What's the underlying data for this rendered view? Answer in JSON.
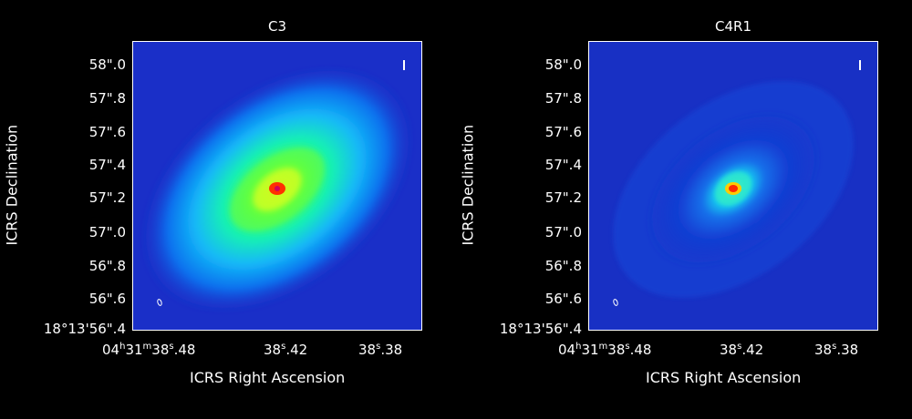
{
  "panels": [
    {
      "title": "C3",
      "xlabel": "ICRS Right Ascension",
      "ylabel": "ICRS Declination",
      "yticks": [
        "58\".0",
        "57\".8",
        "57\".6",
        "57\".4",
        "57\".2",
        "57\".0",
        "56\".8",
        "56\".6",
        "18°13'56\".4"
      ],
      "xticks": [
        {
          "pre": "04",
          "h": "h",
          "mid": "31",
          "m": "m",
          "post": "38",
          "s": "s",
          "end": ".48"
        },
        {
          "pre": "",
          "h": "",
          "mid": "",
          "m": "",
          "post": "38",
          "s": "s",
          "end": ".42"
        },
        {
          "pre": "",
          "h": "",
          "mid": "",
          "m": "",
          "post": "38",
          "s": "s",
          "end": ".38"
        }
      ]
    },
    {
      "title": "C4R1",
      "xlabel": "ICRS Right Ascension",
      "ylabel": "ICRS Declination",
      "yticks": [
        "58\".0",
        "57\".8",
        "57\".6",
        "57\".4",
        "57\".2",
        "57\".0",
        "56\".8",
        "56\".6",
        "18°13'56\".4"
      ],
      "xticks": [
        {
          "pre": "04",
          "h": "h",
          "mid": "31",
          "m": "m",
          "post": "38",
          "s": "s",
          "end": ".48"
        },
        {
          "pre": "",
          "h": "",
          "mid": "",
          "m": "",
          "post": "38",
          "s": "s",
          "end": ".42"
        },
        {
          "pre": "",
          "h": "",
          "mid": "",
          "m": "",
          "post": "38",
          "s": "s",
          "end": ".38"
        }
      ]
    }
  ],
  "colors": {
    "background": "#000000",
    "frame": "#ffffff",
    "image_bg": "#1a2fc8"
  }
}
